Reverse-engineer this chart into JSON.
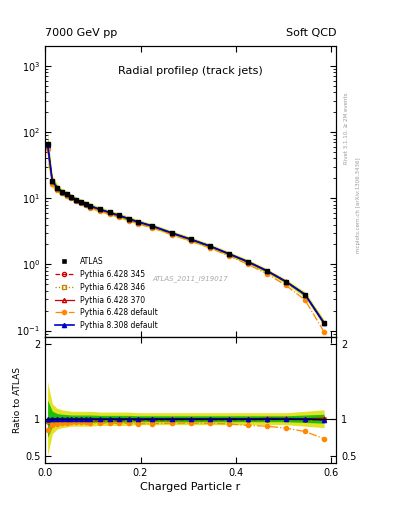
{
  "title": "Radial profileρ (track jets)",
  "top_left": "7000 GeV pp",
  "top_right": "Soft QCD",
  "xlabel": "Charged Particle r",
  "ylabel_ratio": "Ratio to ATLAS",
  "right_label_top": "Rivet 3.1.10, ≥ 2M events",
  "right_label_bot": "mcplots.cern.ch [arXiv:1306.3436]",
  "watermark": "ATLAS_2011_I919017",
  "r_values": [
    0.005,
    0.015,
    0.025,
    0.035,
    0.045,
    0.055,
    0.065,
    0.075,
    0.085,
    0.095,
    0.115,
    0.135,
    0.155,
    0.175,
    0.195,
    0.225,
    0.265,
    0.305,
    0.345,
    0.385,
    0.425,
    0.465,
    0.505,
    0.545,
    0.585
  ],
  "atlas_y": [
    65.0,
    18.0,
    14.5,
    12.5,
    11.5,
    10.5,
    9.5,
    8.8,
    8.2,
    7.6,
    6.8,
    6.1,
    5.5,
    4.9,
    4.4,
    3.8,
    3.0,
    2.4,
    1.9,
    1.45,
    1.1,
    0.8,
    0.55,
    0.35,
    0.13
  ],
  "atlas_err_rel": [
    0.25,
    0.1,
    0.07,
    0.06,
    0.055,
    0.05,
    0.05,
    0.05,
    0.05,
    0.05,
    0.045,
    0.045,
    0.045,
    0.045,
    0.04,
    0.04,
    0.04,
    0.04,
    0.04,
    0.04,
    0.04,
    0.04,
    0.04,
    0.05,
    0.06
  ],
  "atlas_err2_rel": [
    0.5,
    0.2,
    0.14,
    0.12,
    0.11,
    0.1,
    0.1,
    0.1,
    0.1,
    0.1,
    0.09,
    0.09,
    0.09,
    0.09,
    0.08,
    0.08,
    0.08,
    0.08,
    0.08,
    0.08,
    0.08,
    0.08,
    0.08,
    0.1,
    0.12
  ],
  "py6_345_y": [
    62.0,
    17.5,
    14.2,
    12.2,
    11.2,
    10.2,
    9.3,
    8.6,
    8.0,
    7.4,
    6.6,
    5.95,
    5.35,
    4.8,
    4.3,
    3.72,
    2.95,
    2.37,
    1.87,
    1.43,
    1.08,
    0.79,
    0.545,
    0.345,
    0.128
  ],
  "py6_346_y": [
    63.0,
    17.8,
    14.3,
    12.3,
    11.3,
    10.3,
    9.4,
    8.7,
    8.1,
    7.5,
    6.7,
    6.0,
    5.4,
    4.85,
    4.35,
    3.75,
    2.97,
    2.38,
    1.88,
    1.44,
    1.09,
    0.8,
    0.55,
    0.348,
    0.13
  ],
  "py6_370_y": [
    64.0,
    17.9,
    14.4,
    12.4,
    11.4,
    10.4,
    9.45,
    8.75,
    8.15,
    7.55,
    6.75,
    6.05,
    5.45,
    4.88,
    4.38,
    3.77,
    2.98,
    2.39,
    1.89,
    1.445,
    1.095,
    0.805,
    0.552,
    0.35,
    0.131
  ],
  "py6_def_y": [
    55.0,
    16.5,
    13.5,
    11.8,
    10.9,
    10.0,
    9.1,
    8.4,
    7.8,
    7.2,
    6.4,
    5.75,
    5.15,
    4.6,
    4.1,
    3.55,
    2.82,
    2.26,
    1.78,
    1.35,
    1.0,
    0.72,
    0.48,
    0.29,
    0.095
  ],
  "py8_def_y": [
    64.5,
    18.0,
    14.5,
    12.5,
    11.5,
    10.5,
    9.5,
    8.8,
    8.2,
    7.6,
    6.8,
    6.1,
    5.5,
    4.9,
    4.4,
    3.8,
    3.0,
    2.4,
    1.9,
    1.45,
    1.1,
    0.8,
    0.55,
    0.35,
    0.128
  ],
  "color_atlas": "#000000",
  "color_py6_345": "#cc0000",
  "color_py6_346": "#bb8800",
  "color_py6_370": "#cc0000",
  "color_py6_def": "#ff8800",
  "color_py8_def": "#0000cc",
  "band_green": "#00bb00",
  "band_yellow": "#dddd00",
  "ylim_main": [
    0.08,
    2000
  ],
  "ylim_ratio": [
    0.4,
    2.1
  ],
  "xlim": [
    0.0,
    0.61
  ],
  "yticks_ratio": [
    0.5,
    1.0,
    2.0
  ],
  "ytick_labels_ratio": [
    "0.5",
    "1",
    "2"
  ]
}
